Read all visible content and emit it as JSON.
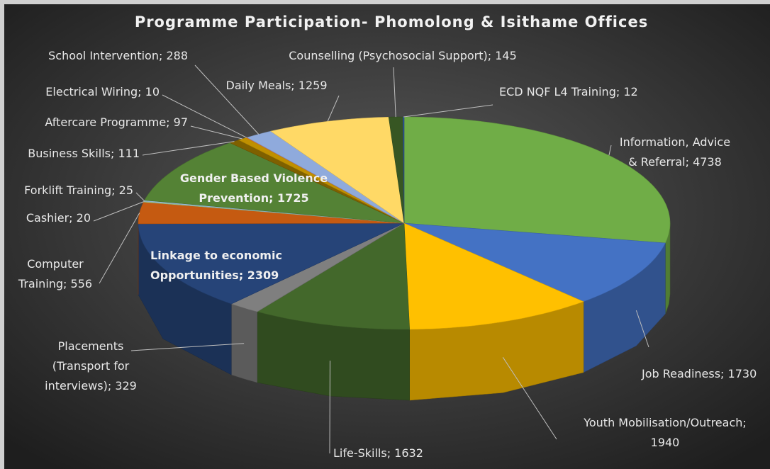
{
  "chart_data": {
    "type": "pie",
    "title": "Programme Participation- Phomolong & Isithame Offices",
    "values": [
      4738,
      1730,
      1940,
      1632,
      329,
      2309,
      556,
      20,
      25,
      1725,
      111,
      97,
      10,
      288,
      1259,
      145,
      12
    ],
    "labels": [
      [
        "Information, Advice",
        "& Referral; 4738"
      ],
      [
        "Job Readiness; 1730"
      ],
      [
        "Youth Mobilisation/Outreach;",
        "1940"
      ],
      [
        "Life-Skills; 1632"
      ],
      [
        "Placements",
        "(Transport for",
        "interviews); 329"
      ],
      [
        "Linkage to economic",
        "Opportunities; 2309"
      ],
      [
        "Computer",
        "Training; 556"
      ],
      [
        "Cashier; 20"
      ],
      [
        "Forklift Training; 25"
      ],
      [
        "Gender Based Violence",
        "Prevention; 1725"
      ],
      [
        "Business Skills; 111"
      ],
      [
        "Aftercare Programme; 97"
      ],
      [
        "Electrical Wiring; 10"
      ],
      [
        "School Intervention; 288"
      ],
      [
        "Daily Meals; 1259"
      ],
      [
        "Counselling (Psychosocial Support); 145"
      ],
      [
        "ECD NQF L4 Training; 12"
      ]
    ],
    "colors": [
      "#70ad47",
      "#4472c4",
      "#ffc000",
      "#43682b",
      "#7f7f7f",
      "#264478",
      "#c55a11",
      "#a9d18e",
      "#9dc3e6",
      "#548235",
      "#7f6000",
      "#bf9000",
      "#ed7d31",
      "#8faadc",
      "#ffd966",
      "#375623",
      "#2f5597"
    ]
  }
}
